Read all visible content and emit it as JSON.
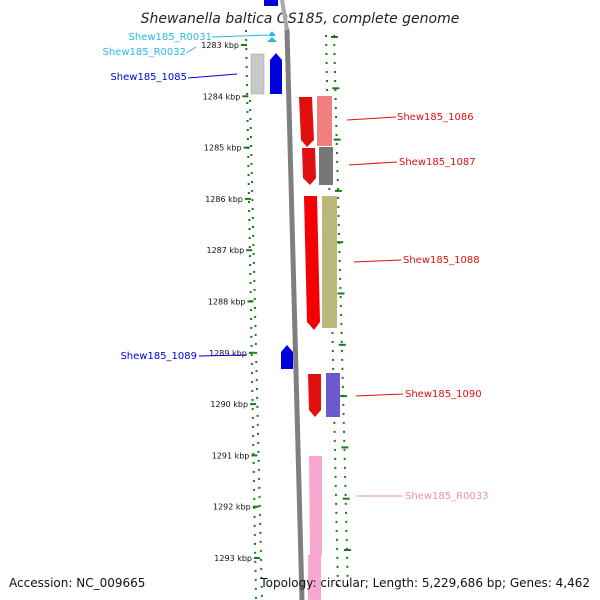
{
  "title": "Shewanella baltica OS185, complete genome",
  "footer": {
    "accession": "Accession: NC_009665",
    "topology": "Topology: circular; Length: 5,229,686 bp; Genes: 4,462"
  },
  "ruler": {
    "labels": [
      "1283 kbp",
      "1284 kbp",
      "1285 kbp",
      "1286 kbp",
      "1287 kbp",
      "1288 kbp",
      "1289 kbp",
      "1290 kbp",
      "1291 kbp",
      "1292 kbp",
      "1293 kbp"
    ],
    "tick_color": "#1a7a1a"
  },
  "genes": [
    {
      "name": "Shew185_R0031",
      "color": "#29b6e8"
    },
    {
      "name": "Shew185_R0032",
      "color": "#29b6e8"
    },
    {
      "name": "Shew185_1085",
      "color": "#0000dd"
    },
    {
      "name": "Shew185_1086",
      "color": "#e01010"
    },
    {
      "name": "Shew185_1087",
      "color": "#e01010"
    },
    {
      "name": "Shew185_1088",
      "color": "#e01010"
    },
    {
      "name": "Shew185_1089",
      "color": "#0000dd"
    },
    {
      "name": "Shew185_1090",
      "color": "#e01010"
    },
    {
      "name": "Shew185_R0033",
      "color": "#f08cc0"
    }
  ]
}
